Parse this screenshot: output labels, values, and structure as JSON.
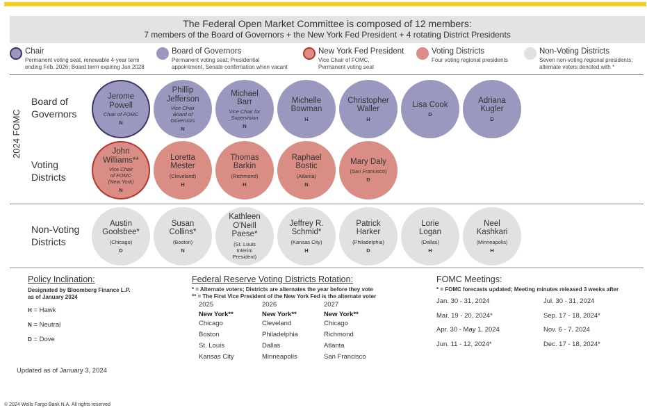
{
  "header": {
    "title": "The Federal Open Market Committee is composed of 12 members:",
    "subtitle": "7 members of the Board of Governors + the New York Fed President + 4 rotating District Presidents"
  },
  "legend": [
    {
      "title": "Chair",
      "desc1": "Permanent voting seat, renewable 4-year term",
      "desc2": "ending Feb. 2026; Board term expiring Jan 2028",
      "color": "#9b98c0",
      "border": "#3c3468"
    },
    {
      "title": "Board of Governors",
      "desc1": "Permanent voting seat; Presidential",
      "desc2": "appointment, Senate confirmation when vacant",
      "color": "#9b98c0",
      "border": ""
    },
    {
      "title": "New York Fed President",
      "desc1": "Vice Chair of FOMC,",
      "desc2": "Permanent voting seat",
      "color": "#d98d84",
      "border": "#b8342a"
    },
    {
      "title": "Voting Districts",
      "desc1": "Four voting regional presidents",
      "desc2": "",
      "color": "#d98d84",
      "border": ""
    },
    {
      "title": "Non-Voting Districts",
      "desc1": "Seven non-voting regional presidents;",
      "desc2": "alternate voters denoted with *",
      "color": "#e1e1e1",
      "border": ""
    }
  ],
  "side_label": "2024 FOMC",
  "rows": {
    "board_label": [
      "Board of",
      "Governors"
    ],
    "voting_label": [
      "Voting",
      "Districts"
    ],
    "nonvoting_label": [
      "Non-Voting",
      "Districts"
    ]
  },
  "board": [
    {
      "name1": "Jerome",
      "name2": "Powell",
      "name3": "",
      "role": [
        "Chair of FOMC"
      ],
      "pol": "N"
    },
    {
      "name1": "Phillip",
      "name2": "Jefferson",
      "name3": "",
      "role": [
        "Vice Chair",
        "Board of",
        "Governors"
      ],
      "pol": "N"
    },
    {
      "name1": "Michael",
      "name2": "Barr",
      "name3": "",
      "role": [
        "Vice Chair for",
        "Supervision"
      ],
      "pol": "N"
    },
    {
      "name1": "Michelle",
      "name2": "Bowman",
      "name3": "",
      "role": [],
      "pol": "H"
    },
    {
      "name1": "Christopher",
      "name2": "Waller",
      "name3": "",
      "role": [],
      "pol": "H"
    },
    {
      "name1": "Lisa Cook",
      "name2": "",
      "name3": "",
      "role": [],
      "pol": "D"
    },
    {
      "name1": "Adriana",
      "name2": "Kugler",
      "name3": "",
      "role": [],
      "pol": "D"
    }
  ],
  "voting": [
    {
      "name1": "John",
      "name2": "Williams**",
      "name3": "",
      "role": [
        "Vice Chair",
        "of FOMC",
        "(New York)"
      ],
      "loc": "",
      "pol": "N"
    },
    {
      "name1": "Loretta",
      "name2": "Mester",
      "name3": "",
      "role": [],
      "loc": "(Cleveland)",
      "pol": "H"
    },
    {
      "name1": "Thomas",
      "name2": "Barkin",
      "name3": "",
      "role": [],
      "loc": "(Richmond)",
      "pol": "H"
    },
    {
      "name1": "Raphael",
      "name2": "Bostic",
      "name3": "",
      "role": [],
      "loc": "(Atlanta)",
      "pol": "N"
    },
    {
      "name1": "Mary Daly",
      "name2": "",
      "name3": "",
      "role": [],
      "loc": "(San Francisco)",
      "pol": "D"
    }
  ],
  "nonvoting": [
    {
      "name1": "Austin",
      "name2": "Goolsbee*",
      "name3": "",
      "loc": "(Chicago)",
      "pol": "D"
    },
    {
      "name1": "Susan",
      "name2": "Collins*",
      "name3": "",
      "loc": "(Boston)",
      "pol": "N"
    },
    {
      "name1": "Kathleen",
      "name2": "O'Neill",
      "name3": "Paese*",
      "loc": "(St. Louis Interim President)",
      "pol": ""
    },
    {
      "name1": "Jeffrey R.",
      "name2": "Schmid*",
      "name3": "",
      "loc": "(Kansas City)",
      "pol": "H"
    },
    {
      "name1": "Patrick",
      "name2": "Harker",
      "name3": "",
      "loc": "(Philadelphia)",
      "pol": "D"
    },
    {
      "name1": "Lorie",
      "name2": "Logan",
      "name3": "",
      "loc": "(Dallas)",
      "pol": "H"
    },
    {
      "name1": "Neel",
      "name2": "Kashkari",
      "name3": "",
      "loc": "(Minneapolis)",
      "pol": "H"
    }
  ],
  "policy": {
    "title": "Policy Inclination:",
    "note1": "Designated by Bloomberg Finance L.P.",
    "note2": "as of January 2024",
    "hawk_key": "H",
    "hawk_label": "= Hawk",
    "neutral_key": "N",
    "neutral_label": "= Neutral",
    "dove_key": "D",
    "dove_label": "= Dove",
    "updated": "Updated as of January 3, 2024"
  },
  "rotation": {
    "title": "Federal Reserve Voting Districts Rotation:",
    "note1": "* = Alternate voters; Districts are alternates the year before they vote",
    "note2": "** = The First Vice President of the New York Fed is the alternate voter",
    "columns": [
      {
        "year": "2025",
        "lead": "New York**",
        "items": [
          "Chicago",
          "Boston",
          "St. Louis",
          "Kansas City"
        ]
      },
      {
        "year": "2026",
        "lead": "New York**",
        "items": [
          "Cleveland",
          "Philadelphia",
          "Dallas",
          "Minneapolis"
        ]
      },
      {
        "year": "2027",
        "lead": "New York**",
        "items": [
          "Chicago",
          "Richmond",
          "Atlanta",
          "San Francisco"
        ]
      }
    ]
  },
  "meetings": {
    "title": "FOMC Meetings:",
    "note": "* = FOMC forecasts updated; Meeting minutes released 3 weeks after",
    "left": [
      "Jan. 30 - 31, 2024",
      "Mar. 19 - 20, 2024*",
      "Apr. 30 - May 1, 2024",
      "Jun. 11 - 12, 2024*"
    ],
    "right": [
      "Jul. 30 - 31, 2024",
      "Sep. 17 - 18, 2024*",
      "Nov. 6 - 7, 2024",
      "Dec. 17 - 18, 2024*"
    ]
  },
  "footer": "© 2024 Wells Fargo Bank N.A. All rights reserved"
}
